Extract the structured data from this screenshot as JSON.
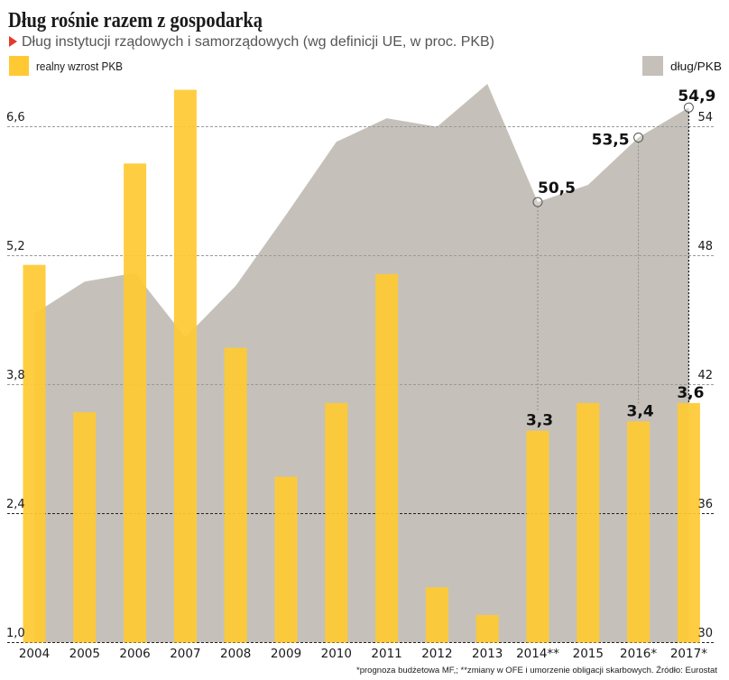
{
  "header": {
    "title": "Dług rośnie razem z gospodarką",
    "subtitle": "Dług instytucji rządowych i samorządowych (wg definicji UE, w proc. PKB)",
    "subtitle_marker_icon": "red-triangle-icon"
  },
  "legend": {
    "gdp_label": "realny wzrost PKB",
    "debt_label": "dług/PKB"
  },
  "footnote": "*prognoza budżetowa MF,; **zmiany w OFE i umorzenie obligacji skarbowych. Źródło: Eurostat",
  "colors": {
    "gdp_bar": "#FFC933",
    "debt_area": "#C5C1BA",
    "accent_triangle": "#E8372C",
    "text": "#1A1A1A",
    "subtitle_text": "#555555"
  },
  "chart_data": {
    "type": "bar+area",
    "title": "Dług rośnie razem z gospodarką",
    "subtitle": "Dług instytucji rządowych i samorządowych (wg definicji UE, w proc. PKB)",
    "categories": [
      "2004",
      "2005",
      "2006",
      "2007",
      "2008",
      "2009",
      "2010",
      "2011",
      "2012",
      "2013",
      "2014**",
      "2015",
      "2016*",
      "2017*"
    ],
    "series": [
      {
        "name": "realny wzrost PKB",
        "type": "bar",
        "axis": "left",
        "values": [
          5.1,
          3.5,
          6.2,
          7.0,
          4.2,
          2.8,
          3.6,
          5.0,
          1.6,
          1.3,
          3.3,
          3.6,
          3.4,
          3.6
        ]
      },
      {
        "name": "dług/PKB",
        "type": "area",
        "axis": "right",
        "values": [
          45.3,
          46.8,
          47.2,
          44.2,
          46.6,
          49.9,
          53.3,
          54.4,
          54.0,
          56.0,
          50.5,
          51.3,
          53.5,
          54.9
        ]
      }
    ],
    "left_axis": {
      "range": [
        1.0,
        7.1
      ],
      "tick_values": [
        6.6,
        5.2,
        3.8,
        2.4,
        1.0
      ],
      "tick_labels": [
        "6,6",
        "5,2",
        "3,8",
        "2,4",
        "1,0"
      ]
    },
    "right_axis": {
      "range": [
        30,
        56.15
      ],
      "tick_values": [
        54,
        48,
        42,
        36,
        30
      ],
      "tick_labels": [
        "54",
        "48",
        "42",
        "36",
        "30"
      ]
    },
    "xlabel": "",
    "grid": true,
    "legend": [
      {
        "label": "realny wzrost PKB",
        "position": "top-left"
      },
      {
        "label": "dług/PKB",
        "position": "top-right"
      }
    ],
    "annotations": {
      "bar_labels": [
        {
          "category": "2014**",
          "text": "3,3"
        },
        {
          "category": "2016*",
          "text": "3,4"
        },
        {
          "category": "2017*",
          "text": "3,6"
        }
      ],
      "area_labels": [
        {
          "category": "2014**",
          "text": "50,5"
        },
        {
          "category": "2016*",
          "text": "53,5"
        },
        {
          "category": "2017*",
          "text": "54,9"
        }
      ]
    }
  }
}
